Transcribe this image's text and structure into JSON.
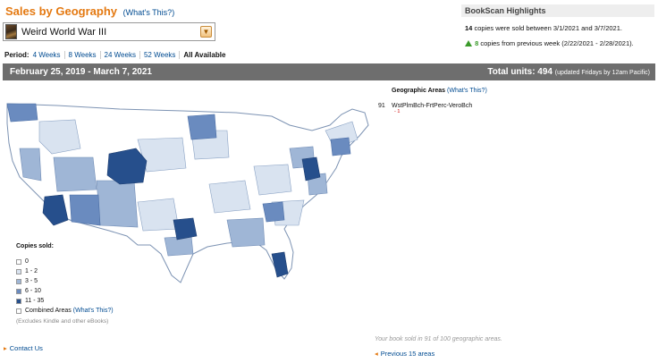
{
  "header": {
    "title": "Sales by Geography",
    "whats_this": "(What's This?)"
  },
  "selector": {
    "book_title": "Weird World War III",
    "dropdown_icon": "chevron-down-icon"
  },
  "period": {
    "label": "Period:",
    "options": [
      "4 Weeks",
      "8 Weeks",
      "24 Weeks",
      "52 Weeks",
      "All Available"
    ],
    "active": "All Available"
  },
  "highlights": {
    "title": "BookScan Highlights",
    "copies_count": "14",
    "copies_text": "copies were sold between 3/1/2021 and 3/7/2021.",
    "change_count": "8",
    "change_text": "copies from previous week (2/22/2021 - 2/28/2021)."
  },
  "band": {
    "date_range": "February 25, 2019 - March 7, 2021",
    "total_label": "Total units: 494",
    "total_note": "(updated Fridays by 12am Pacific)"
  },
  "legend": {
    "title": "Copies sold:",
    "items": [
      {
        "label": "0",
        "color": "#ffffff"
      },
      {
        "label": "1 - 2",
        "color": "#d9e3f0"
      },
      {
        "label": "3 - 5",
        "color": "#9fb6d6"
      },
      {
        "label": "6 - 10",
        "color": "#6a8bbf"
      },
      {
        "label": "11 - 35",
        "color": "#264f8c"
      }
    ],
    "combined_label": "Combined Areas",
    "combined_link": "(What's This?)",
    "note": "(Excludes Kindle and other eBooks)"
  },
  "geo_areas": {
    "title": "Geographic Areas",
    "link": "(What's This?)",
    "rows": [
      {
        "rank": "91",
        "name": "WstPlmBch-FrtPerc-VeroBch",
        "change": "- 1"
      }
    ]
  },
  "footer": {
    "contact": "Contact Us",
    "summary": "Your book sold in 91 of 100 geographic areas.",
    "previous": "Previous 15 areas"
  },
  "colors": {
    "accent_orange": "#e47911",
    "link_blue": "#004b91",
    "band_gray": "#6e6e6e"
  }
}
